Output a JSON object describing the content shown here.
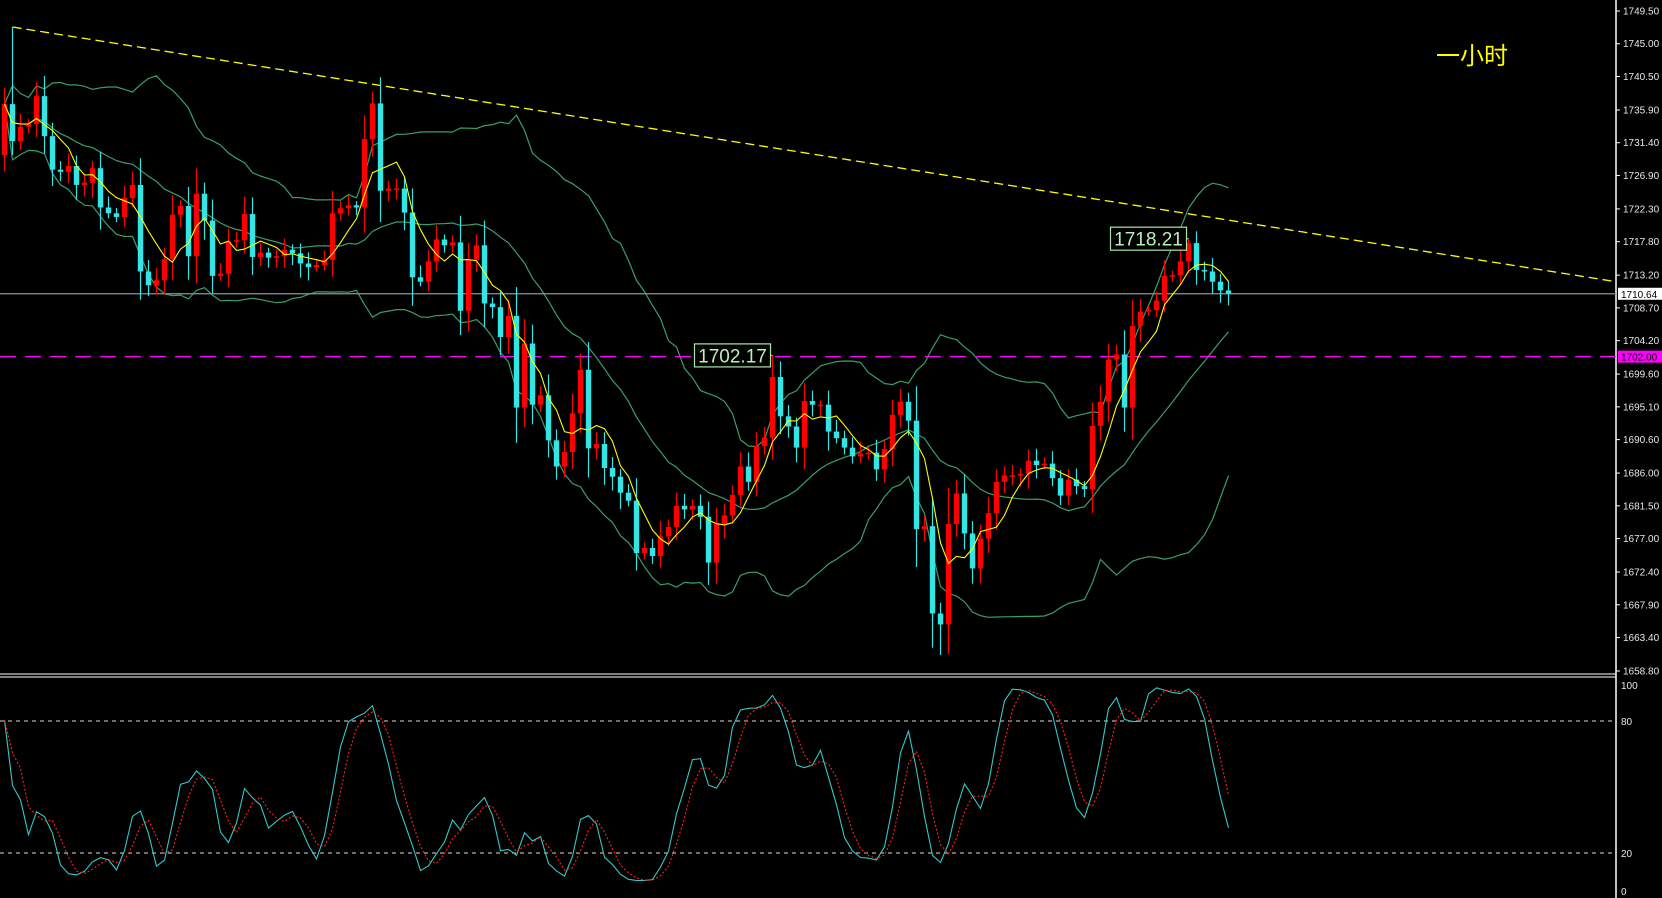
{
  "chart_data": {
    "type": "candlestick",
    "title": "一小时",
    "timeframe_label": "一小时",
    "y_axis": {
      "range": [
        1658.8,
        1749.5
      ],
      "ticks": [
        "1749.50",
        "1745.00",
        "1740.50",
        "1735.90",
        "1731.40",
        "1726.90",
        "1722.30",
        "1717.80",
        "1713.20",
        "1708.70",
        "1704.20",
        "1699.60",
        "1695.10",
        "1690.60",
        "1686.00",
        "1681.50",
        "1677.00",
        "1672.40",
        "1667.90",
        "1663.40",
        "1658.80"
      ]
    },
    "first_open": 1729.7,
    "closes": [
      1736.7,
      1731.6,
      1733.6,
      1734.0,
      1737.8,
      1732.3,
      1727.7,
      1727.4,
      1728.2,
      1725.6,
      1725.9,
      1727.9,
      1722.5,
      1721.7,
      1721.2,
      1723.8,
      1725.6,
      1713.7,
      1711.8,
      1712.5,
      1715.4,
      1721.5,
      1722.7,
      1715.8,
      1724.4,
      1720.7,
      1713.1,
      1713.4,
      1717.8,
      1718.0,
      1721.6,
      1715.7,
      1716.3,
      1715.6,
      1715.8,
      1716.7,
      1716.2,
      1714.8,
      1714.3,
      1714.6,
      1715.3,
      1721.7,
      1722.4,
      1722.8,
      1722.5,
      1731.9,
      1736.8,
      1724.8,
      1725.1,
      1725.1,
      1721.8,
      1712.9,
      1712.3,
      1715.1,
      1718.1,
      1717.3,
      1717.7,
      1708.3,
      1715.3,
      1717.3,
      1709.3,
      1708.8,
      1704.7,
      1707.6,
      1695.0,
      1703.8,
      1695.4,
      1696.7,
      1690.5,
      1686.9,
      1688.9,
      1694.2,
      1700.2,
      1689.4,
      1690.0,
      1686.7,
      1685.5,
      1683.3,
      1682.2,
      1675.0,
      1675.7,
      1674.6,
      1677.3,
      1678.6,
      1681.5,
      1681.0,
      1681.5,
      1680.0,
      1673.7,
      1679.0,
      1680.2,
      1683.0,
      1686.9,
      1684.8,
      1689.7,
      1690.9,
      1699.2,
      1693.8,
      1692.4,
      1689.5,
      1695.9,
      1695.4,
      1695.4,
      1691.7,
      1690.8,
      1689.5,
      1688.3,
      1688.7,
      1688.8,
      1686.5,
      1689.3,
      1694.0,
      1695.8,
      1693.2,
      1678.3,
      1678.7,
      1666.7,
      1665.2,
      1679.0,
      1683.2,
      1677.7,
      1672.9,
      1677.0,
      1680.5,
      1684.8,
      1685.7,
      1685.7,
      1685.9,
      1687.7,
      1687.1,
      1687.3,
      1685.3,
      1682.9,
      1685.1,
      1684.2,
      1683.8,
      1692.5,
      1695.8,
      1701.6,
      1702.3,
      1695.0,
      1706.2,
      1708.2,
      1708.4,
      1709.7,
      1713.1,
      1713.2,
      1715.1,
      1717.6,
      1713.9,
      1713.7,
      1712.3,
      1711.1,
      1710.64
    ],
    "wick_extremes": [
      {
        "index": 1,
        "high": 1747.3
      },
      {
        "index": 46,
        "high": 1738.4
      },
      {
        "index": 96,
        "high": 1702.17
      },
      {
        "index": 117,
        "low": 1661.0
      },
      {
        "index": 148,
        "high": 1718.21
      }
    ],
    "annotations": [
      {
        "text": "1702.17",
        "index": 96,
        "price": 1702.17
      },
      {
        "text": "1718.21",
        "index": 148,
        "price": 1718.21
      }
    ],
    "current_price": {
      "value": 1710.64,
      "label": "1710.64"
    },
    "horizontal_level": {
      "value": 1702.0,
      "label": "1702.00"
    },
    "trendline": {
      "from": {
        "index": 1,
        "price": 1747.3
      },
      "to_price_at_axis": 1712.3
    },
    "indicators": {
      "ma_period": 5,
      "bollinger": {
        "period": 20,
        "deviation": 2
      },
      "stochastic": {
        "k": 9,
        "slow": 3,
        "d": 3
      }
    },
    "oscillator_axis": {
      "range": [
        0,
        100
      ],
      "ticks": [
        "100",
        "80",
        "20",
        "0"
      ],
      "levels": [
        80,
        20
      ]
    },
    "colors": {
      "up": "#ff0000",
      "down": "#33e6e6",
      "bands": "#3a9e68",
      "ma": "#ffff00",
      "trend": "#ffff00",
      "level": "#ff00ff",
      "price_line": "#8a93a3",
      "stoch_main": "#33c9c9",
      "stoch_signal": "#ff2020"
    }
  }
}
